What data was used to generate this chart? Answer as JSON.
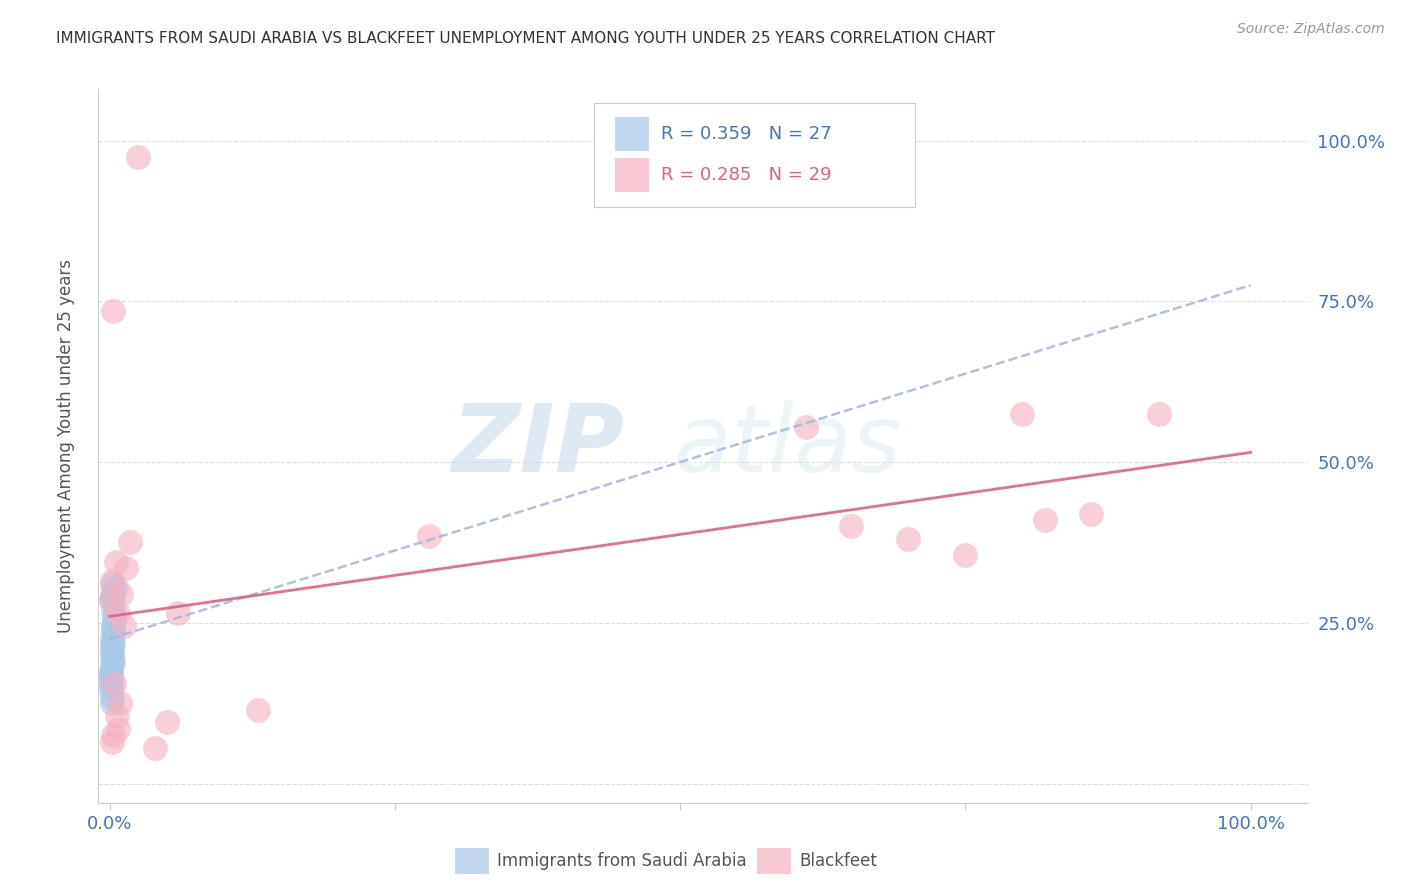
{
  "title": "IMMIGRANTS FROM SAUDI ARABIA VS BLACKFEET UNEMPLOYMENT AMONG YOUTH UNDER 25 YEARS CORRELATION CHART",
  "source": "Source: ZipAtlas.com",
  "ylabel": "Unemployment Among Youth under 25 years",
  "legend_label1": "Immigrants from Saudi Arabia",
  "legend_label2": "Blackfeet",
  "legend_r1": "R = 0.359",
  "legend_n1": "N = 27",
  "legend_r2": "R = 0.285",
  "legend_n2": "N = 29",
  "color_blue": "#a8c8e8",
  "color_blue_dark": "#4472c4",
  "color_blue_line": "#a0b8d8",
  "color_pink": "#f4b0c0",
  "color_pink_line": "#e06080",
  "color_axis": "#4472c4",
  "watermark_zip": "ZIP",
  "watermark_atlas": "atlas",
  "saudi_x": [
    0.001,
    0.002,
    0.001,
    0.003,
    0.002,
    0.004,
    0.001,
    0.003,
    0.005,
    0.003,
    0.002,
    0.002,
    0.001,
    0.003,
    0.002,
    0.001,
    0.003,
    0.004,
    0.002,
    0.003,
    0.001,
    0.002,
    0.002,
    0.003,
    0.001,
    0.002,
    0.002
  ],
  "saudi_y": [
    0.285,
    0.295,
    0.17,
    0.19,
    0.215,
    0.26,
    0.175,
    0.22,
    0.305,
    0.24,
    0.205,
    0.195,
    0.155,
    0.27,
    0.225,
    0.165,
    0.235,
    0.255,
    0.21,
    0.245,
    0.16,
    0.185,
    0.135,
    0.29,
    0.145,
    0.31,
    0.125
  ],
  "blackfeet_x": [
    0.025,
    0.003,
    0.001,
    0.01,
    0.005,
    0.002,
    0.018,
    0.014,
    0.007,
    0.28,
    0.65,
    0.7,
    0.75,
    0.8,
    0.86,
    0.92,
    0.82,
    0.61,
    0.13,
    0.04,
    0.05,
    0.06,
    0.012,
    0.003,
    0.007,
    0.004,
    0.009,
    0.006,
    0.002
  ],
  "blackfeet_y": [
    0.975,
    0.735,
    0.285,
    0.295,
    0.345,
    0.315,
    0.375,
    0.335,
    0.265,
    0.385,
    0.4,
    0.38,
    0.355,
    0.575,
    0.42,
    0.575,
    0.41,
    0.555,
    0.115,
    0.055,
    0.095,
    0.265,
    0.245,
    0.075,
    0.085,
    0.155,
    0.125,
    0.105,
    0.065
  ],
  "saudi_intercept": 0.225,
  "saudi_slope": 0.55,
  "blackfeet_intercept": 0.26,
  "blackfeet_slope": 0.255,
  "x_min": -0.01,
  "x_max": 1.05,
  "y_min": -0.03,
  "y_max": 1.08
}
